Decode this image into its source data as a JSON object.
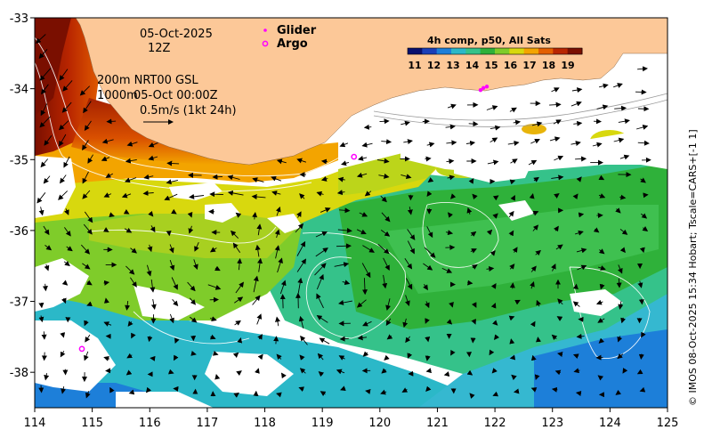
{
  "map": {
    "date": "05-Oct-2025",
    "hour": "12Z",
    "glider_label": "Glider",
    "argo_label": "Argo",
    "contour_line1": "200m  NRT00 GSL",
    "contour_line2_depth": "1000m",
    "contour_line2_time": "05-Oct 00:00Z",
    "scale_label": "0.5m/s (1kt 24h)",
    "colorbar_title": "4h comp, p50, All Sats",
    "colorbar_ticks": [
      "11",
      "12",
      "13",
      "14",
      "15",
      "16",
      "17",
      "18",
      "19"
    ],
    "colorbar_colors": [
      "#08106e",
      "#1a3fb8",
      "#1d7fd9",
      "#2bb8c8",
      "#35c28a",
      "#2fb13a",
      "#7fcc2a",
      "#d8d80e",
      "#f3a400",
      "#e35f00",
      "#b82500",
      "#7a0f00"
    ],
    "side_text": "© IMOS 08-Oct-2025 15:34 Hobart; Tscale=CARS+[-1 1]",
    "x_ticks": [
      "114",
      "115",
      "116",
      "117",
      "118",
      "119",
      "120",
      "121",
      "122",
      "123",
      "124",
      "125"
    ],
    "y_ticks": [
      "-33",
      "-34",
      "-35",
      "-36",
      "-37",
      "-38"
    ],
    "x_range": [
      114,
      125
    ],
    "y_range": [
      -38.5,
      -33
    ],
    "glider_positions": [
      [
        121.75,
        -34.02
      ],
      [
        121.8,
        -33.99
      ],
      [
        121.86,
        -33.97
      ]
    ],
    "argo_positions": [
      [
        119.55,
        -34.96
      ],
      [
        114.82,
        -37.67
      ]
    ],
    "land_color": "#fcc898",
    "glider_color": "#ff00ff",
    "argo_color": "#ff00ff"
  }
}
